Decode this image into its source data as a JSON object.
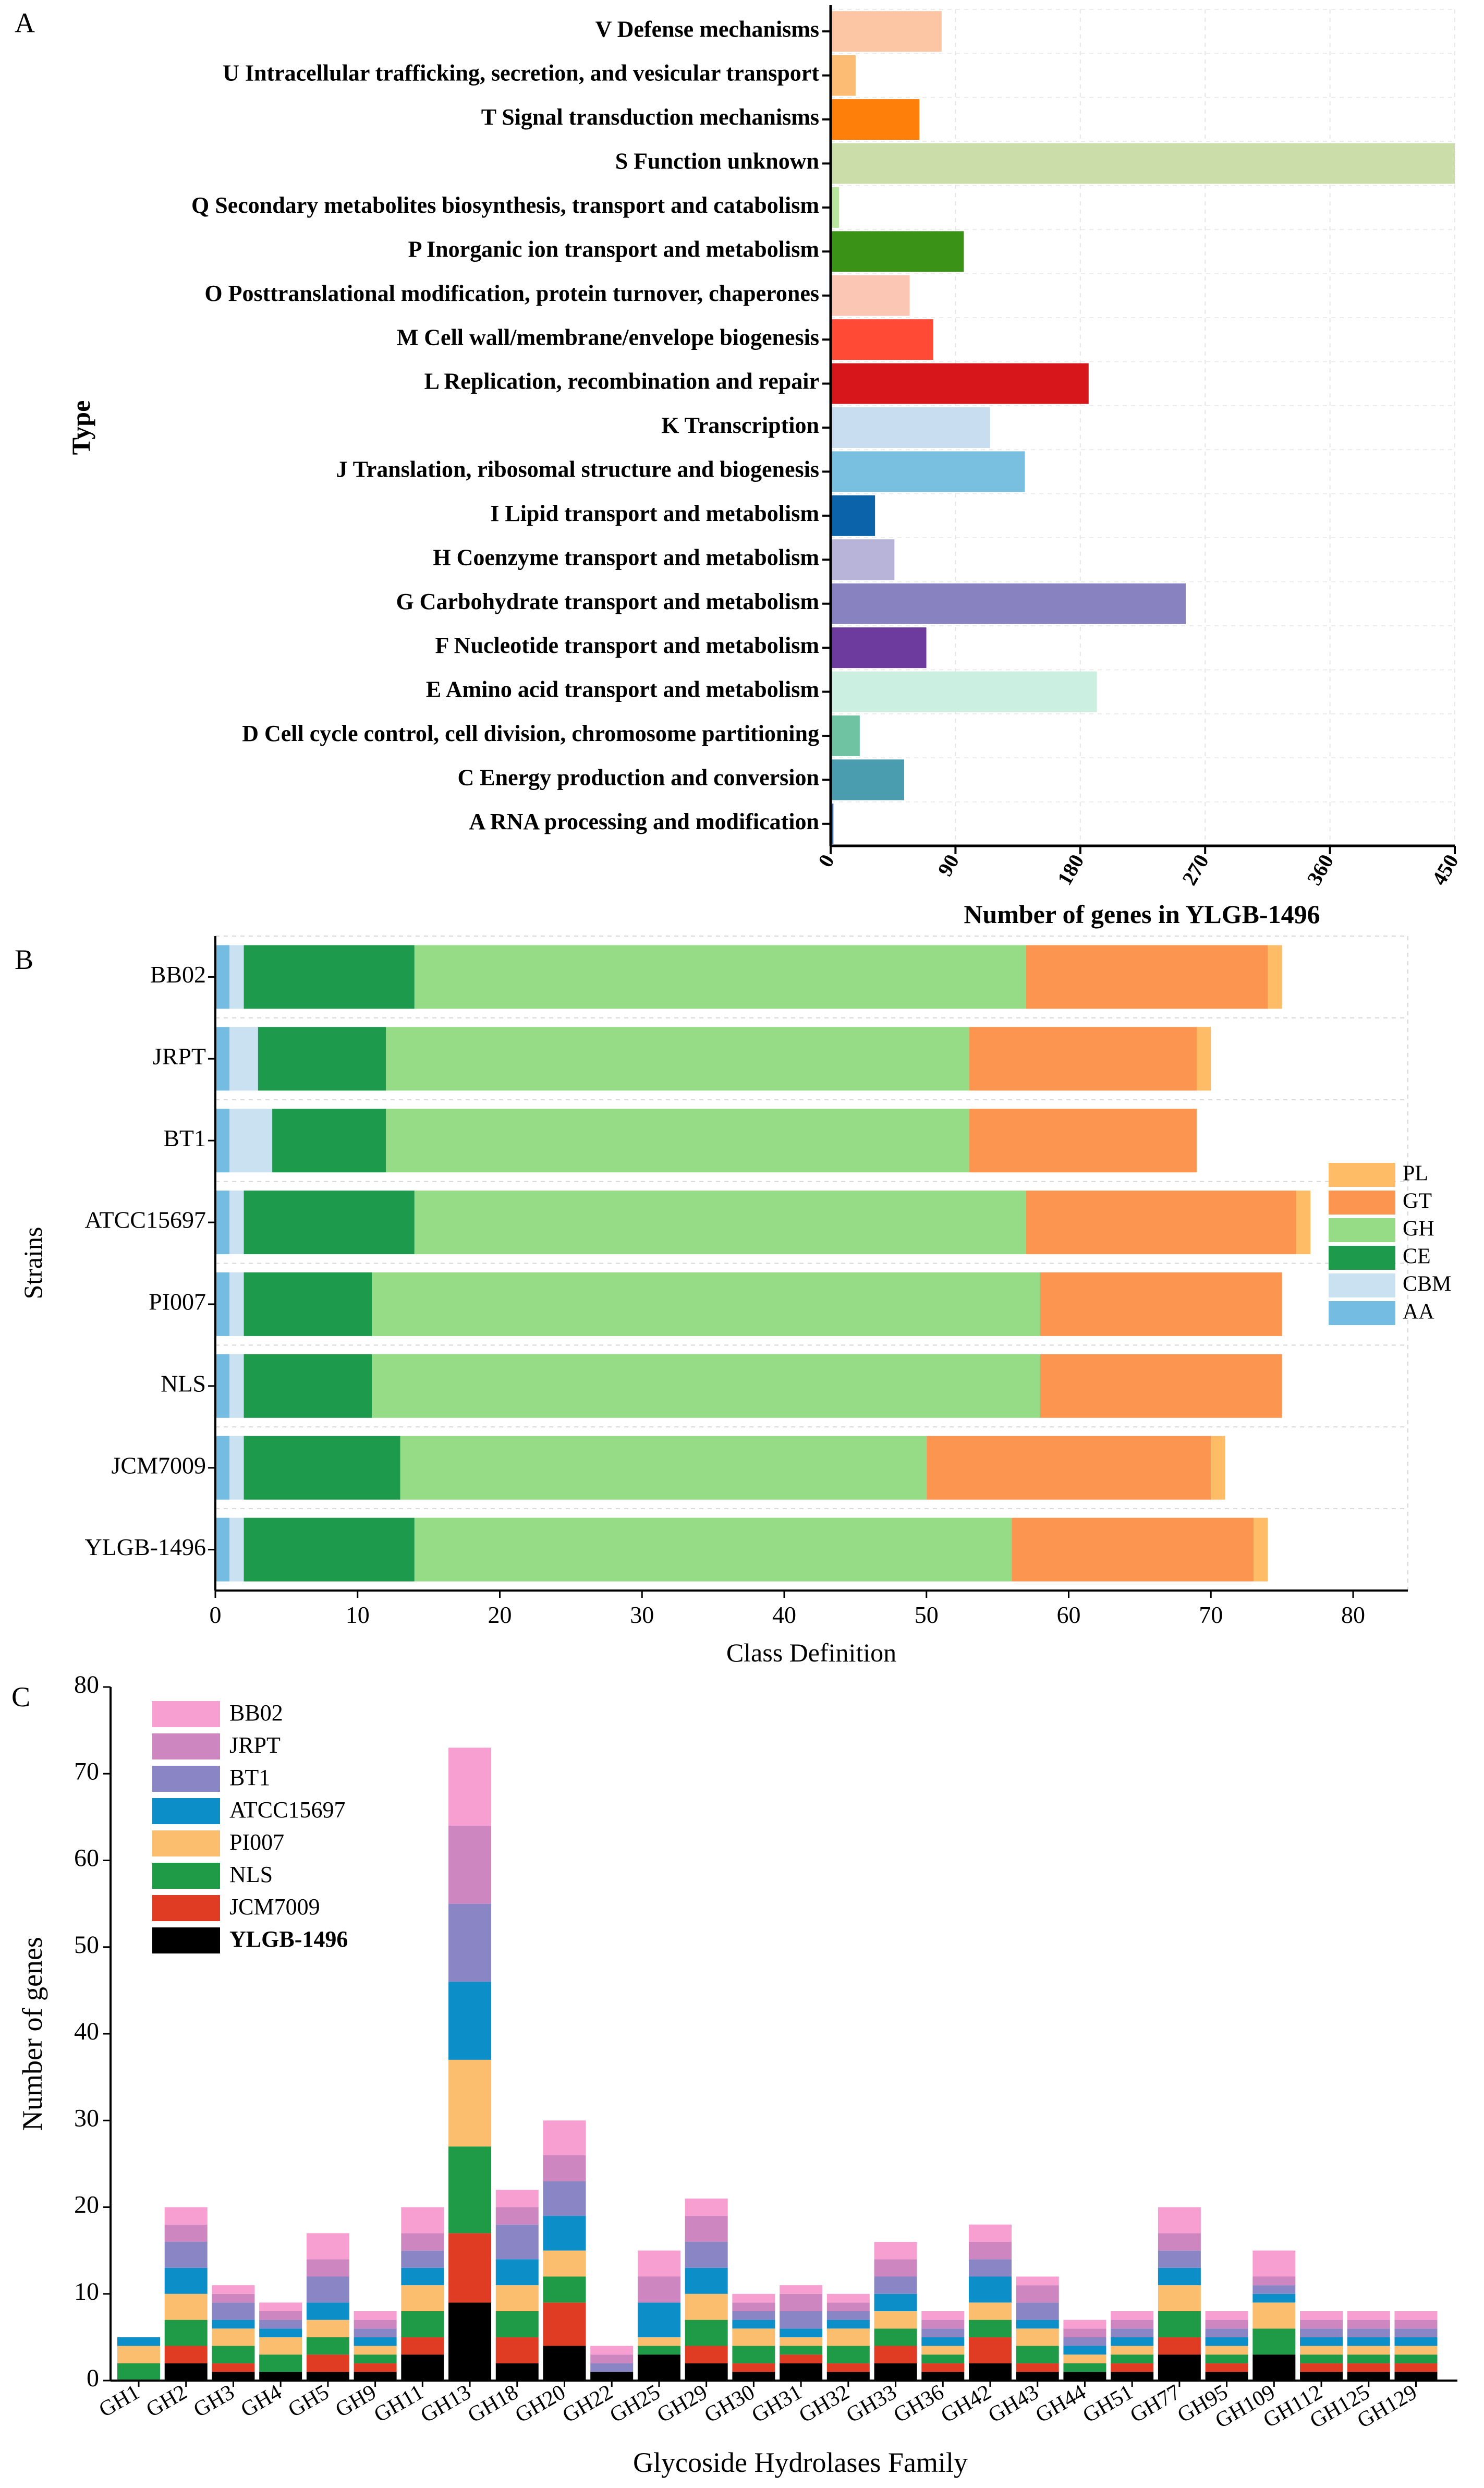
{
  "chart_data": [
    {
      "panel": "A",
      "type": "bar",
      "orientation": "horizontal",
      "title": "",
      "xlabel": "Number of genes in YLGB-1496",
      "ylabel": "Type",
      "xlim": [
        0,
        450
      ],
      "xticks": [
        "0",
        "90",
        "180",
        "270",
        "360",
        "450"
      ],
      "categories": [
        "V Defense mechanisms",
        "U Intracellular trafficking, secretion, and vesicular transport",
        "T Signal transduction mechanisms",
        "S Function unknown",
        "Q Secondary metabolites biosynthesis, transport and catabolism",
        "P Inorganic ion transport and metabolism",
        "O Posttranslational modification, protein turnover, chaperones",
        "M Cell wall/membrane/envelope biogenesis",
        "L Replication, recombination and repair",
        "K Transcription",
        "J Translation, ribosomal structure and biogenesis",
        "I Lipid transport and metabolism",
        "H Coenzyme transport and metabolism",
        "G Carbohydrate transport and metabolism",
        "F Nucleotide transport and metabolism",
        "E Amino acid transport and metabolism",
        "D Cell cycle control, cell division, chromosome partitioning",
        "C Energy production and conversion",
        "A RNA processing and modification"
      ],
      "values": [
        80,
        18,
        64,
        450,
        6,
        96,
        57,
        74,
        186,
        115,
        140,
        32,
        46,
        256,
        69,
        192,
        21,
        53,
        2
      ],
      "colors": [
        "#FCC6A5",
        "#FDBC74",
        "#FF7F0B",
        "#CBDDA9",
        "#B8E69E",
        "#3A9317",
        "#FCC6B4",
        "#FF4B35",
        "#D6161B",
        "#C9DDF0",
        "#79C0E0",
        "#0B63AA",
        "#B8B3D8",
        "#8882C0",
        "#6D3A9E",
        "#CBEFE0",
        "#6FC3A3",
        "#4A9DAF",
        "#4169AE"
      ]
    },
    {
      "panel": "B",
      "type": "bar",
      "orientation": "horizontal",
      "stacked": true,
      "title": "",
      "xlabel": "Class Definition",
      "ylabel": "Strains",
      "xlim": [
        0,
        85
      ],
      "xticks": [
        "0",
        "10",
        "20",
        "30",
        "40",
        "50",
        "60",
        "70",
        "80"
      ],
      "categories": [
        "BB02",
        "JRPT",
        "BT1",
        "ATCC15697",
        "PI007",
        "NLS",
        "JCM7009",
        "YLGB-1496"
      ],
      "series": [
        {
          "name": "AA",
          "color": "#74BCE1",
          "values": [
            1,
            1,
            1,
            1,
            1,
            1,
            1,
            1
          ]
        },
        {
          "name": "CBM",
          "color": "#C9E1F1",
          "values": [
            1,
            2,
            3,
            1,
            1,
            1,
            1,
            1
          ]
        },
        {
          "name": "CE",
          "color": "#1D9A4C",
          "values": [
            12,
            9,
            8,
            12,
            9,
            9,
            11,
            12
          ]
        },
        {
          "name": "GH",
          "color": "#96DB85",
          "values": [
            43,
            41,
            41,
            43,
            47,
            47,
            37,
            42
          ]
        },
        {
          "name": "GT",
          "color": "#FC9550",
          "values": [
            17,
            16,
            16,
            19,
            17,
            17,
            20,
            17
          ]
        },
        {
          "name": "PL",
          "color": "#FEBC67",
          "values": [
            1,
            1,
            0,
            1,
            0,
            0,
            1,
            1
          ]
        }
      ],
      "legend_order": [
        "PL",
        "GT",
        "GH",
        "CE",
        "CBM",
        "AA"
      ],
      "legend_position": "right"
    },
    {
      "panel": "C",
      "type": "bar",
      "stacked": true,
      "title": "",
      "xlabel": "Glycoside Hydrolases Family",
      "ylabel": "Number of genes",
      "ylim": [
        0,
        80
      ],
      "yticks": [
        "0",
        "10",
        "20",
        "30",
        "40",
        "50",
        "60",
        "70",
        "80"
      ],
      "categories": [
        "GH1",
        "GH2",
        "GH3",
        "GH4",
        "GH5",
        "GH9",
        "GH11",
        "GH13",
        "GH18",
        "GH20",
        "GH22",
        "GH25",
        "GH29",
        "GH30",
        "GH31",
        "GH32",
        "GH33",
        "GH36",
        "GH42",
        "GH43",
        "GH44",
        "GH51",
        "GH77",
        "GH95",
        "GH109",
        "GH112",
        "GH125",
        "GH129"
      ],
      "series": [
        {
          "name": "YLGB-1496",
          "color": "#000000",
          "values": [
            0,
            2,
            1,
            1,
            1,
            1,
            3,
            9,
            2,
            4,
            1,
            3,
            2,
            1,
            2,
            1,
            2,
            1,
            2,
            1,
            1,
            1,
            3,
            1,
            3,
            1,
            1,
            1
          ]
        },
        {
          "name": "JCM7009",
          "color": "#E03C23",
          "values": [
            0,
            2,
            1,
            0,
            2,
            1,
            2,
            8,
            3,
            5,
            0,
            0,
            2,
            1,
            1,
            1,
            2,
            1,
            3,
            1,
            0,
            1,
            2,
            1,
            0,
            1,
            1,
            1
          ]
        },
        {
          "name": "NLS",
          "color": "#1F9A47",
          "values": [
            2,
            3,
            2,
            2,
            2,
            1,
            3,
            10,
            3,
            3,
            0,
            1,
            3,
            2,
            1,
            2,
            2,
            1,
            2,
            2,
            1,
            1,
            3,
            1,
            3,
            1,
            1,
            1
          ]
        },
        {
          "name": "PI007",
          "color": "#FBBE6E",
          "values": [
            2,
            3,
            2,
            2,
            2,
            1,
            3,
            10,
            3,
            3,
            0,
            1,
            3,
            2,
            1,
            2,
            2,
            1,
            2,
            2,
            1,
            1,
            3,
            1,
            3,
            1,
            1,
            1
          ]
        },
        {
          "name": "ATCC15697",
          "color": "#0C8EC9",
          "values": [
            1,
            3,
            1,
            1,
            2,
            1,
            2,
            9,
            3,
            4,
            0,
            4,
            3,
            1,
            1,
            1,
            2,
            1,
            3,
            1,
            1,
            1,
            2,
            1,
            1,
            1,
            1,
            1
          ]
        },
        {
          "name": "BT1",
          "color": "#8A85C5",
          "values": [
            0,
            3,
            2,
            1,
            3,
            1,
            2,
            9,
            4,
            4,
            1,
            0,
            3,
            1,
            2,
            1,
            2,
            1,
            2,
            2,
            1,
            1,
            2,
            1,
            1,
            1,
            1,
            1
          ]
        },
        {
          "name": "JRPT",
          "color": "#CE86C0",
          "values": [
            0,
            2,
            1,
            1,
            2,
            1,
            2,
            9,
            2,
            3,
            1,
            3,
            3,
            1,
            2,
            1,
            2,
            1,
            2,
            2,
            1,
            1,
            2,
            1,
            1,
            1,
            1,
            1
          ]
        },
        {
          "name": "BB02",
          "color": "#F79FD1",
          "values": [
            0,
            2,
            1,
            1,
            3,
            1,
            3,
            9,
            2,
            4,
            1,
            3,
            2,
            1,
            1,
            1,
            2,
            1,
            2,
            1,
            1,
            1,
            3,
            1,
            3,
            1,
            1,
            1
          ]
        }
      ],
      "legend_order": [
        "BB02",
        "JRPT",
        "BT1",
        "ATCC15697",
        "PI007",
        "NLS",
        "JCM7009",
        "YLGB-1496"
      ],
      "legend_bold": "YLGB-1496",
      "legend_position": "top-left"
    }
  ],
  "labels": {
    "panel_a": "A",
    "panel_b": "B",
    "panel_c": "C"
  }
}
